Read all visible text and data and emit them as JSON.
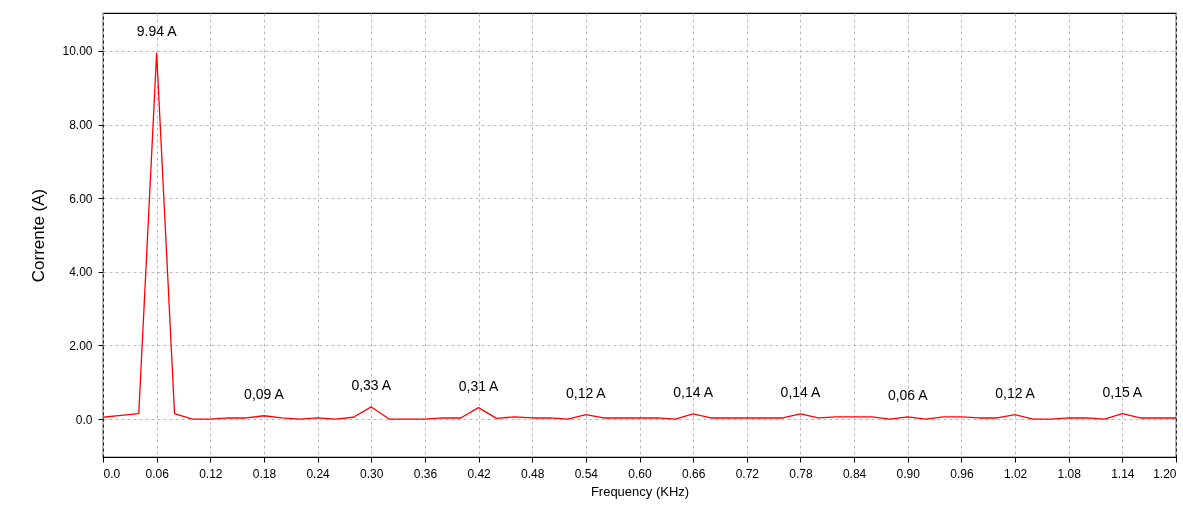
{
  "chart_data": {
    "type": "line",
    "xlabel": "Frequency (KHz)",
    "ylabel": "Corrente (A)",
    "x": [
      0,
      0.02,
      0.04,
      0.06,
      0.08,
      0.1,
      0.12,
      0.14,
      0.16,
      0.18,
      0.2,
      0.22,
      0.24,
      0.26,
      0.28,
      0.3,
      0.32,
      0.34,
      0.36,
      0.38,
      0.4,
      0.42,
      0.44,
      0.46,
      0.48,
      0.5,
      0.52,
      0.54,
      0.56,
      0.58,
      0.6,
      0.62,
      0.64,
      0.66,
      0.68,
      0.7,
      0.72,
      0.74,
      0.76,
      0.78,
      0.8,
      0.82,
      0.84,
      0.86,
      0.88,
      0.9,
      0.92,
      0.94,
      0.96,
      0.98,
      1,
      1.02,
      1.04,
      1.06,
      1.08,
      1.1,
      1.12,
      1.14,
      1.16,
      1.18,
      1.2
    ],
    "series": [
      {
        "color": "#ff0000",
        "values": [
          0.05,
          0.1,
          0.15,
          9.94,
          0.15,
          0,
          0,
          0.03,
          0.03,
          0.09,
          0.03,
          0,
          0.03,
          0,
          0.05,
          0.33,
          0,
          0,
          0,
          0.03,
          0.03,
          0.31,
          0.02,
          0.06,
          0.03,
          0.03,
          0,
          0.12,
          0.03,
          0.03,
          0.03,
          0.03,
          0,
          0.14,
          0.03,
          0.03,
          0.03,
          0.03,
          0.03,
          0.14,
          0.03,
          0.06,
          0.06,
          0.06,
          0,
          0.06,
          0,
          0.06,
          0.06,
          0.03,
          0.03,
          0.12,
          0,
          0,
          0.03,
          0.03,
          0,
          0.15,
          0.03,
          0.03,
          0.03
        ],
        "value_labels": [
          null,
          null,
          null,
          "9.94 A",
          null,
          null,
          null,
          null,
          null,
          "0,09 A",
          null,
          null,
          null,
          null,
          null,
          "0,33 A",
          null,
          null,
          null,
          null,
          null,
          "0,31 A",
          null,
          null,
          null,
          null,
          null,
          "0,12 A",
          null,
          null,
          null,
          null,
          null,
          "0,14 A",
          null,
          null,
          null,
          null,
          null,
          "0,14 A",
          null,
          null,
          null,
          null,
          null,
          "0,06 A",
          null,
          null,
          null,
          null,
          null,
          "0,12 A",
          null,
          null,
          null,
          null,
          null,
          "0,15 A",
          null,
          null,
          null
        ]
      }
    ],
    "xlim": [
      0,
      1.2
    ],
    "xticks": [
      {
        "value": 0,
        "label": "0.0"
      },
      0.06,
      0.12,
      0.18,
      0.24,
      {
        "value": 0.3,
        "label": "0.30"
      },
      0.36,
      0.42,
      0.48,
      0.54,
      {
        "value": 0.6,
        "label": "0.60"
      },
      0.66,
      0.72,
      0.78,
      0.84,
      {
        "value": 0.9,
        "label": "0.90"
      },
      0.96,
      1.02,
      1.08,
      1.14,
      {
        "value": 1.2,
        "label": "1.20"
      }
    ],
    "ylim": [
      -1.03,
      11.03
    ],
    "yticks": [
      {
        "value": 0,
        "label": "0.0"
      },
      {
        "value": 2,
        "label": "2.00"
      },
      {
        "value": 4,
        "label": "4.00"
      },
      {
        "value": 6,
        "label": "6.00"
      },
      {
        "value": 8,
        "label": "8.00"
      },
      {
        "value": 10,
        "label": "10.00"
      }
    ],
    "grid": true
  }
}
